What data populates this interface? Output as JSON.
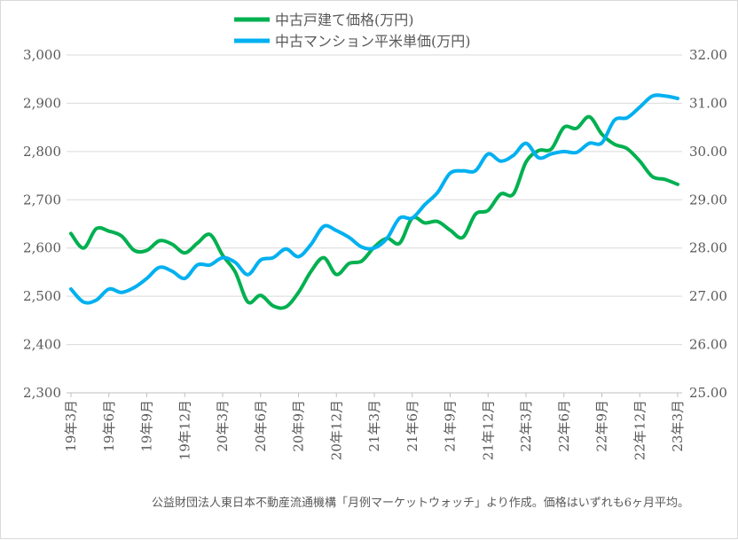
{
  "chart_data": {
    "type": "line",
    "x_labels": [
      "19年3月",
      "19年6月",
      "19年9月",
      "19年12月",
      "20年3月",
      "20年6月",
      "20年9月",
      "20年12月",
      "21年3月",
      "21年6月",
      "21年9月",
      "21年12月",
      "22年3月",
      "22年6月",
      "22年9月",
      "22年12月",
      "23年3月"
    ],
    "x": [
      "19年3月",
      "19年4月",
      "19年5月",
      "19年6月",
      "19年7月",
      "19年8月",
      "19年9月",
      "19年10月",
      "19年11月",
      "19年12月",
      "20年1月",
      "20年2月",
      "20年3月",
      "20年4月",
      "20年5月",
      "20年6月",
      "20年7月",
      "20年8月",
      "20年9月",
      "20年10月",
      "20年11月",
      "20年12月",
      "21年1月",
      "21年2月",
      "21年3月",
      "21年4月",
      "21年5月",
      "21年6月",
      "21年7月",
      "21年8月",
      "21年9月",
      "21年10月",
      "21年11月",
      "21年12月",
      "22年1月",
      "22年2月",
      "22年3月",
      "22年4月",
      "22年5月",
      "22年6月",
      "22年7月",
      "22年8月",
      "22年9月",
      "22年10月",
      "22年11月",
      "22年12月",
      "23年1月",
      "23年2月",
      "23年3月"
    ],
    "series": [
      {
        "name": "中古戸建て価格(万円)",
        "axis": "left",
        "color": "#00b050",
        "values": [
          2630,
          2600,
          2640,
          2635,
          2625,
          2595,
          2595,
          2615,
          2608,
          2590,
          2610,
          2628,
          2585,
          2550,
          2488,
          2502,
          2480,
          2478,
          2508,
          2552,
          2580,
          2545,
          2568,
          2573,
          2602,
          2620,
          2610,
          2662,
          2652,
          2655,
          2637,
          2622,
          2670,
          2678,
          2712,
          2712,
          2778,
          2802,
          2805,
          2850,
          2848,
          2872,
          2836,
          2815,
          2806,
          2780,
          2748,
          2742,
          2732
        ]
      },
      {
        "name": "中古マンション平米単価(万円)",
        "axis": "right",
        "color": "#00b0f0",
        "values": [
          27.15,
          26.88,
          26.92,
          27.15,
          27.08,
          27.18,
          27.37,
          27.6,
          27.52,
          27.37,
          27.65,
          27.65,
          27.8,
          27.7,
          27.45,
          27.75,
          27.8,
          27.98,
          27.82,
          28.08,
          28.45,
          28.36,
          28.22,
          28.02,
          28.0,
          28.2,
          28.62,
          28.62,
          28.9,
          29.15,
          29.55,
          29.6,
          29.6,
          29.95,
          29.8,
          29.92,
          30.17,
          29.87,
          29.95,
          30.0,
          29.98,
          30.17,
          30.18,
          30.65,
          30.7,
          30.92,
          31.15,
          31.15,
          31.1
        ]
      }
    ],
    "y_left": {
      "min": 2300,
      "max": 3000,
      "ticks": [
        "2,300",
        "2,400",
        "2,500",
        "2,600",
        "2,700",
        "2,800",
        "2,900",
        "3,000"
      ]
    },
    "y_right": {
      "min": 25.0,
      "max": 32.0,
      "ticks": [
        "25.00",
        "26.00",
        "27.00",
        "28.00",
        "29.00",
        "30.00",
        "31.00",
        "32.00"
      ]
    },
    "grid": "horizontal",
    "legend": "top-center",
    "note": "公益財団法人東日本不動産流通機構「月例マーケットウォッチ」より作成。価格はいずれも6ヶ月平均。"
  }
}
